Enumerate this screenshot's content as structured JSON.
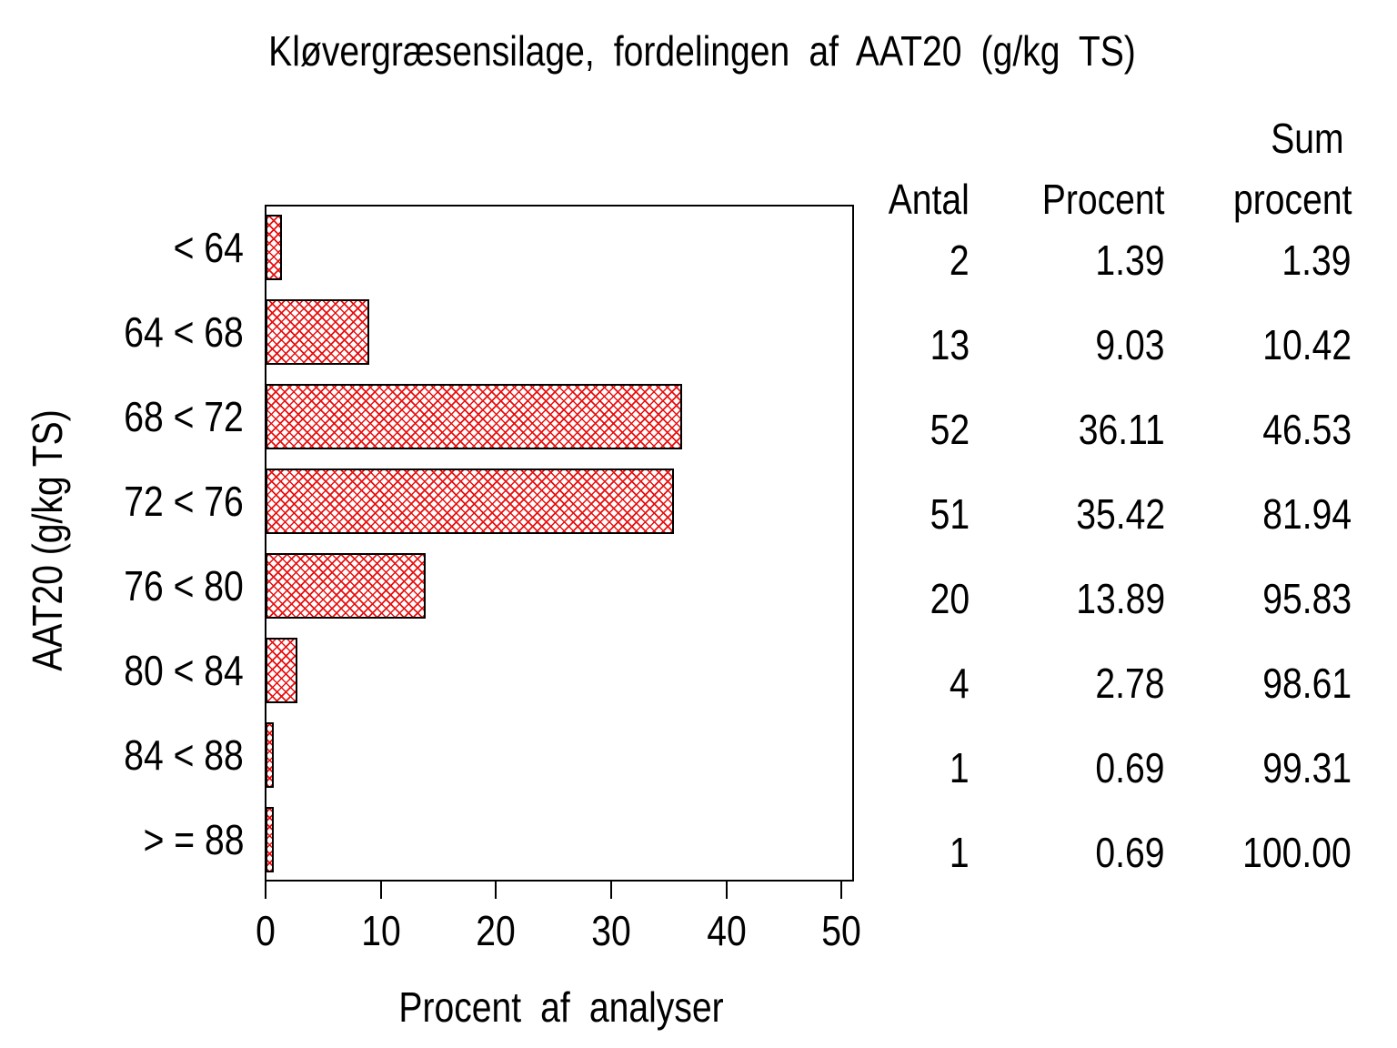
{
  "title": "Kløvergræsensilage, fordelingen af AAT20 (g/kg TS)",
  "chart_data": {
    "type": "bar",
    "orientation": "horizontal",
    "title": "Kløvergræsensilage, fordelingen af AAT20 (g/kg TS)",
    "xlabel": "Procent af analyser",
    "ylabel": "AAT20 (g/kg TS)",
    "categories": [
      "< 64",
      "64 < 68",
      "68 < 72",
      "72 < 76",
      "76 < 80",
      "80 < 84",
      "84 < 88",
      "> = 88"
    ],
    "series": [
      {
        "name": "Antal",
        "values": [
          2,
          13,
          52,
          51,
          20,
          4,
          1,
          1
        ]
      },
      {
        "name": "Procent",
        "values": [
          1.39,
          9.03,
          36.11,
          35.42,
          13.89,
          2.78,
          0.69,
          0.69
        ]
      },
      {
        "name": "Sum procent",
        "values": [
          1.39,
          10.42,
          46.53,
          81.94,
          95.83,
          98.61,
          99.31,
          100.0
        ]
      }
    ],
    "bar_value_series": "Procent",
    "xlim": [
      0,
      51
    ],
    "xticks": [
      0,
      10,
      20,
      30,
      40,
      50
    ],
    "grid": false,
    "frame": true,
    "bar_pattern": "red-crosshatch",
    "bar_pattern_color": "#e80f0f",
    "bar_outline_color": "#000000",
    "text_color": "#000000",
    "background_color": "#ffffff"
  },
  "table": {
    "headers": {
      "antal": "Antal",
      "procent": "Procent",
      "sum_line1": "Sum",
      "sum_line2": "procent"
    },
    "rows": [
      {
        "antal": "2",
        "procent": "1.39",
        "sum": "1.39"
      },
      {
        "antal": "13",
        "procent": "9.03",
        "sum": "10.42"
      },
      {
        "antal": "52",
        "procent": "36.11",
        "sum": "46.53"
      },
      {
        "antal": "51",
        "procent": "35.42",
        "sum": "81.94"
      },
      {
        "antal": "20",
        "procent": "13.89",
        "sum": "95.83"
      },
      {
        "antal": "4",
        "procent": "2.78",
        "sum": "98.61"
      },
      {
        "antal": "1",
        "procent": "0.69",
        "sum": "99.31"
      },
      {
        "antal": "1",
        "procent": "0.69",
        "sum": "100.00"
      }
    ]
  }
}
